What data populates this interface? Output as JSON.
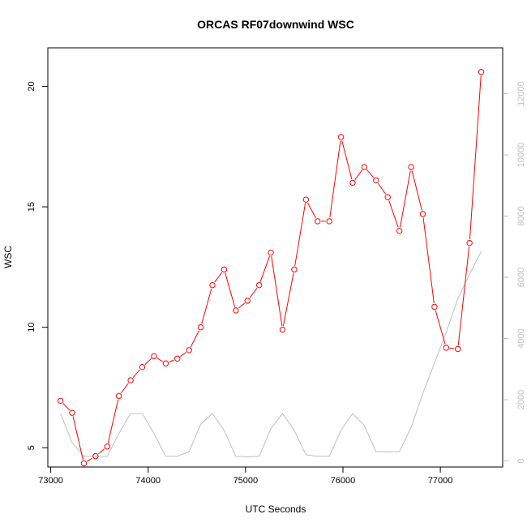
{
  "chart_data": {
    "type": "line",
    "title": "ORCAS RF07downwind WSC",
    "xlabel": "UTC Seconds",
    "ylabel": "WSC",
    "xlim": [
      72970,
      77640
    ],
    "ylim": [
      4.2,
      21.6
    ],
    "ylim_right": [
      -200,
      13500
    ],
    "x_ticks": [
      73000,
      74000,
      75000,
      76000,
      77000
    ],
    "x_tick_labels": [
      "73000",
      "74000",
      "75000",
      "76000",
      "77000"
    ],
    "y_ticks": [
      5,
      10,
      15,
      20
    ],
    "y_tick_labels": [
      "5",
      "10",
      "15",
      "20"
    ],
    "y_right_ticks": [
      0,
      2000,
      4000,
      6000,
      8000,
      10000,
      12000
    ],
    "y_right_tick_labels": [
      "0",
      "2000",
      "4000",
      "6000",
      "8000",
      "10000",
      "12000"
    ],
    "grid": false,
    "colors": {
      "primary": "#ff0000",
      "secondary": "#bebebe",
      "axis": "#000000",
      "right_axis": "#bebebe"
    },
    "series": [
      {
        "axis": "left",
        "style": "line-with-circles",
        "x": [
          73100,
          73220,
          73340,
          73460,
          73580,
          73700,
          73820,
          73940,
          74060,
          74180,
          74300,
          74420,
          74540,
          74660,
          74780,
          74900,
          75020,
          75140,
          75260,
          75380,
          75500,
          75620,
          75740,
          75860,
          75980,
          76100,
          76220,
          76340,
          76460,
          76580,
          76700,
          76820,
          76940,
          77060,
          77180,
          77300,
          77420
        ],
        "values": [
          6.95,
          6.45,
          4.35,
          4.65,
          5.05,
          7.15,
          7.8,
          8.35,
          8.8,
          8.5,
          8.7,
          9.05,
          10.0,
          11.75,
          12.4,
          10.7,
          11.1,
          11.75,
          13.1,
          9.9,
          12.4,
          15.3,
          14.4,
          14.4,
          17.9,
          16.0,
          16.65,
          16.1,
          15.4,
          14.0,
          16.65,
          14.7,
          10.85,
          9.15,
          9.1,
          13.5,
          20.6
        ]
      },
      {
        "axis": "right",
        "style": "line",
        "x": [
          73100,
          73220,
          73340,
          73460,
          73580,
          73700,
          73820,
          73940,
          74060,
          74180,
          74300,
          74420,
          74540,
          74660,
          74780,
          74900,
          75020,
          75140,
          75260,
          75380,
          75500,
          75620,
          75740,
          75860,
          75980,
          76100,
          76220,
          76340,
          76460,
          76580,
          76700,
          76820,
          76940,
          77060,
          77180,
          77300,
          77420
        ],
        "values": [
          1550,
          600,
          150,
          150,
          150,
          900,
          1550,
          1550,
          900,
          150,
          150,
          300,
          1200,
          1550,
          1000,
          150,
          130,
          150,
          1050,
          1550,
          1000,
          200,
          150,
          150,
          1000,
          1550,
          1150,
          300,
          300,
          300,
          1100,
          2200,
          3200,
          4200,
          5300,
          6100,
          6850
        ]
      }
    ]
  }
}
